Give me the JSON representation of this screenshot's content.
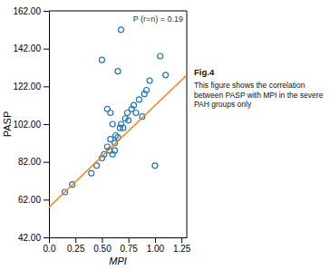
{
  "chart_data": {
    "type": "scatter",
    "x_label": "MPI",
    "y_label": "PASP",
    "xlim": [
      0.0,
      1.3
    ],
    "ylim": [
      42.0,
      162.0
    ],
    "xticks": [
      {
        "value": 0.0,
        "label": "0.0"
      },
      0.25,
      {
        "value": 0.5,
        "label": "0.50"
      },
      0.75,
      {
        "value": 1.0,
        "label": "1.00"
      },
      1.25
    ],
    "yticks": [
      {
        "value": 42.0,
        "label": "42.00"
      },
      {
        "value": 62.0,
        "label": "62.00"
      },
      {
        "value": 82.0,
        "label": "82.00"
      },
      {
        "value": 102.0,
        "label": "102.00"
      },
      {
        "value": 122.0,
        "label": "122.00"
      },
      {
        "value": 142.0,
        "label": "142.00"
      },
      {
        "value": 162.0,
        "label": "162.00"
      }
    ],
    "grid": false,
    "annotations": [
      "P (r=n) = 0.19",
      "Fig.4",
      "This figure shows the correlation\nbetween PASP with MPI in the severe\nPAH groups only"
    ],
    "series": [
      {
        "type": "scatter",
        "marker": "circle",
        "x": [
          0.15,
          0.22,
          0.4,
          0.45,
          0.5,
          0.5,
          0.52,
          0.55,
          0.55,
          0.57,
          0.58,
          0.58,
          0.6,
          0.6,
          0.62,
          0.62,
          0.63,
          0.65,
          0.65,
          0.67,
          0.68,
          0.68,
          0.7,
          0.72,
          0.74,
          0.75,
          0.78,
          0.8,
          0.82,
          0.85,
          0.88,
          0.9,
          0.92,
          0.95,
          1.0,
          1.05,
          1.1
        ],
        "values": [
          66,
          70,
          76,
          80,
          84,
          136,
          86,
          90,
          110,
          88,
          94,
          108,
          86,
          102,
          88,
          92,
          96,
          95,
          130,
          100,
          102,
          152,
          100,
          105,
          108,
          104,
          110,
          112,
          108,
          115,
          106,
          118,
          120,
          125,
          80,
          138,
          128
        ]
      },
      {
        "type": "line",
        "line_style": "solid",
        "x": [
          0.0,
          1.3
        ],
        "values": [
          58.0,
          128.0
        ]
      }
    ]
  }
}
